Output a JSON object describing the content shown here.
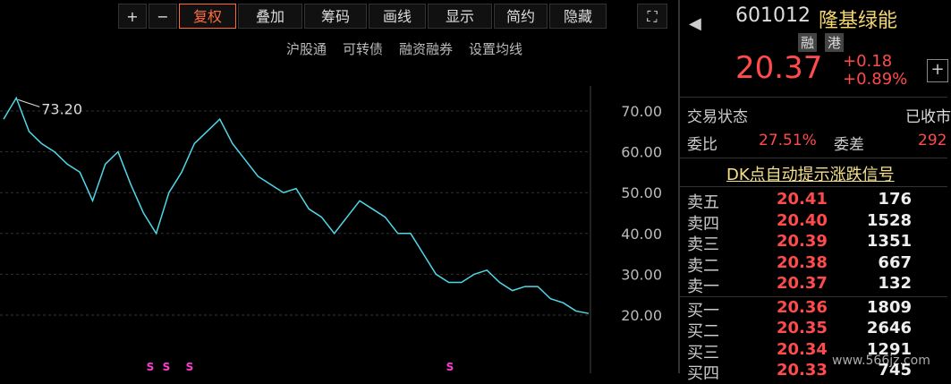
{
  "toolbar": [
    "复权",
    "叠加",
    "筹码",
    "画线",
    "显示",
    "简约",
    "隐藏"
  ],
  "subbar": [
    "沪股通",
    "可转债",
    "融资融券",
    "设置均线"
  ],
  "chart_data": {
    "type": "line",
    "annotation": "73.20",
    "values": [
      68,
      73.2,
      65,
      62,
      60,
      57,
      55,
      48,
      57,
      60,
      52,
      45,
      40,
      50,
      55,
      62,
      65,
      68,
      62,
      58,
      54,
      52,
      50,
      51,
      46,
      44,
      40,
      44,
      48,
      46,
      44,
      40,
      40,
      35,
      30,
      28,
      28,
      30,
      31,
      28,
      26,
      27,
      27,
      24,
      23,
      21,
      20.4
    ],
    "color": "#4fd8e8",
    "ylim": [
      10,
      75
    ],
    "yticks": [
      {
        "value": 20,
        "label": "20.00"
      },
      {
        "value": 30,
        "label": "30.00"
      },
      {
        "value": 40,
        "label": "40.00"
      },
      {
        "value": 50,
        "label": "50.00"
      },
      {
        "value": 60,
        "label": "60.00"
      },
      {
        "value": 70,
        "label": "70.00"
      }
    ],
    "grid": true,
    "signals": [
      "S",
      "S",
      "S",
      "S"
    ]
  },
  "quote": {
    "code": "601012",
    "name": "隆基绿能",
    "tags": [
      "融",
      "港"
    ],
    "price": "20.37",
    "change": "+0.18",
    "pct": "+0.89%",
    "status_label": "交易状态",
    "status": "已收市",
    "wb_label": "委比",
    "wb": "27.51%",
    "wc_label": "委差",
    "wc": "292",
    "dk": "DK点自动提示涨跌信号",
    "book": [
      [
        "卖五",
        "20.41",
        "176"
      ],
      [
        "卖四",
        "20.40",
        "1528"
      ],
      [
        "卖三",
        "20.39",
        "1351"
      ],
      [
        "卖二",
        "20.38",
        "667"
      ],
      [
        "卖一",
        "20.37",
        "132"
      ],
      [
        "买一",
        "20.36",
        "1809"
      ],
      [
        "买二",
        "20.35",
        "2646"
      ],
      [
        "买三",
        "20.34",
        "1291"
      ],
      [
        "买四",
        "20.33",
        "745"
      ]
    ]
  },
  "watermark": "www.566jz.com"
}
